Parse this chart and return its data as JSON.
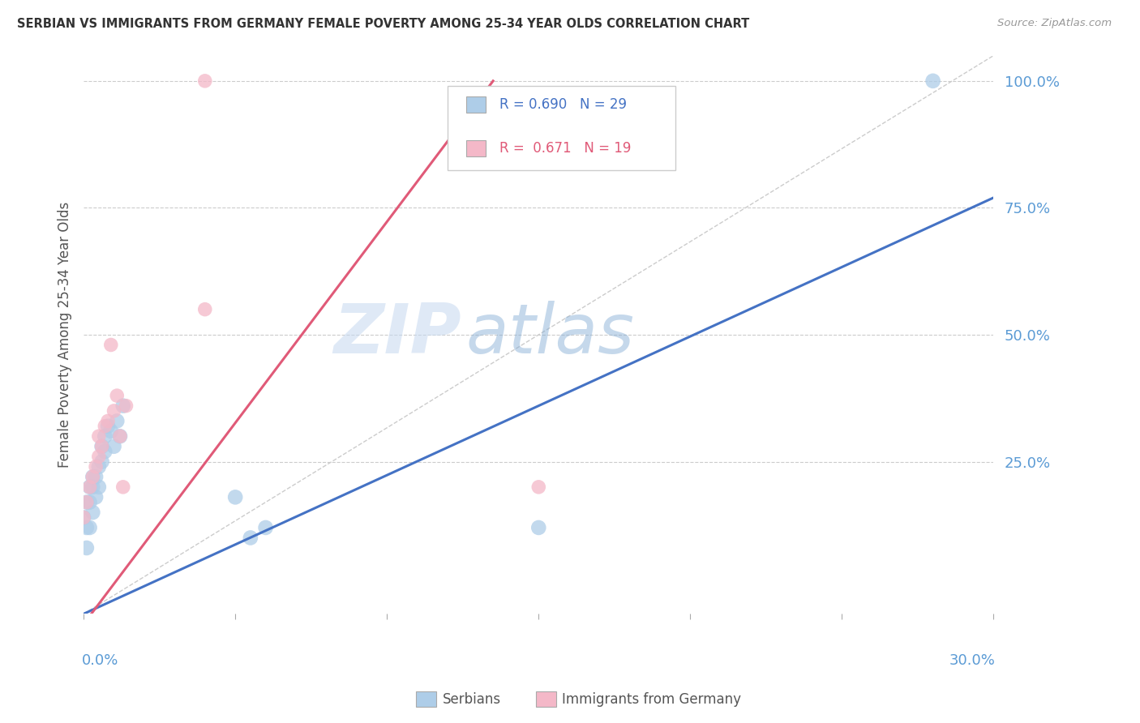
{
  "title": "SERBIAN VS IMMIGRANTS FROM GERMANY FEMALE POVERTY AMONG 25-34 YEAR OLDS CORRELATION CHART",
  "source": "Source: ZipAtlas.com",
  "ylabel": "Female Poverty Among 25-34 Year Olds",
  "ytick_labels": [
    "100.0%",
    "75.0%",
    "50.0%",
    "25.0%"
  ],
  "ytick_values": [
    1.0,
    0.75,
    0.5,
    0.25
  ],
  "background_color": "#ffffff",
  "serbian_color": "#aecde8",
  "immigrant_color": "#f4b8c8",
  "line_serbian_color": "#4472c4",
  "line_immigrant_color": "#e05a78",
  "diagonal_color": "#cccccc",
  "xlim": [
    0.0,
    0.3
  ],
  "ylim": [
    -0.05,
    1.05
  ],
  "tick_label_color": "#5b9bd5",
  "legend_r1": "0.690",
  "legend_n1": "29",
  "legend_r2": "0.671",
  "legend_n2": "19",
  "serbian_x": [
    0.0,
    0.001,
    0.001,
    0.001,
    0.002,
    0.002,
    0.002,
    0.003,
    0.003,
    0.003,
    0.004,
    0.004,
    0.005,
    0.005,
    0.006,
    0.006,
    0.007,
    0.007,
    0.008,
    0.009,
    0.01,
    0.011,
    0.012,
    0.013,
    0.05,
    0.055,
    0.06,
    0.15,
    0.28
  ],
  "serbian_y": [
    0.14,
    0.08,
    0.12,
    0.17,
    0.12,
    0.17,
    0.2,
    0.15,
    0.2,
    0.22,
    0.18,
    0.22,
    0.2,
    0.24,
    0.25,
    0.28,
    0.27,
    0.3,
    0.32,
    0.31,
    0.28,
    0.33,
    0.3,
    0.36,
    0.18,
    0.1,
    0.12,
    0.12,
    1.0
  ],
  "immigrant_x": [
    0.0,
    0.001,
    0.002,
    0.003,
    0.004,
    0.005,
    0.005,
    0.006,
    0.007,
    0.008,
    0.009,
    0.01,
    0.011,
    0.012,
    0.013,
    0.014,
    0.04,
    0.15,
    0.04
  ],
  "immigrant_y": [
    0.14,
    0.17,
    0.2,
    0.22,
    0.24,
    0.26,
    0.3,
    0.28,
    0.32,
    0.33,
    0.48,
    0.35,
    0.38,
    0.3,
    0.2,
    0.36,
    0.55,
    0.2,
    1.0
  ],
  "serbian_line_x": [
    0.0,
    0.3
  ],
  "serbian_line_y": [
    -0.05,
    0.77
  ],
  "immigrant_line_x": [
    0.0,
    0.135
  ],
  "immigrant_line_y": [
    -0.07,
    1.0
  ]
}
